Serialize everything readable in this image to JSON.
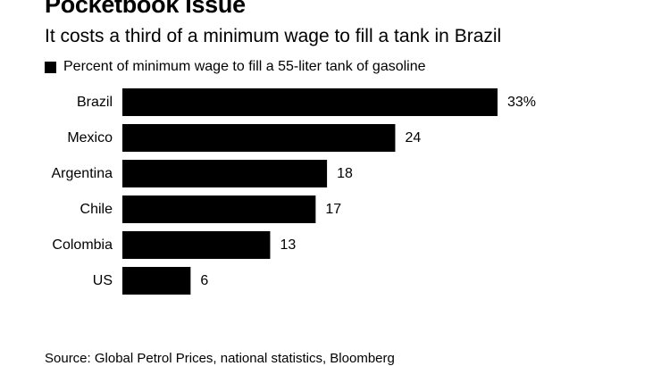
{
  "header": {
    "title": "Pocketbook Issue",
    "subtitle": "It costs a third of a minimum wage to fill a tank in Brazil"
  },
  "legend": {
    "label": "Percent of minimum wage to fill a 55-liter tank of gasoline"
  },
  "source": "Source: Global Petrol Prices, national statistics, Bloomberg",
  "colors": {
    "bar": "#000000",
    "text": "#000000",
    "background": "#ffffff"
  },
  "chart_data": {
    "type": "bar",
    "orientation": "horizontal",
    "categories": [
      "Brazil",
      "Mexico",
      "Argentina",
      "Chile",
      "Colombia",
      "US"
    ],
    "values": [
      33,
      24,
      18,
      17,
      13,
      6
    ],
    "value_labels": [
      "33%",
      "24",
      "18",
      "17",
      "13",
      "6"
    ],
    "xlim": [
      0,
      33
    ],
    "grid": false
  }
}
